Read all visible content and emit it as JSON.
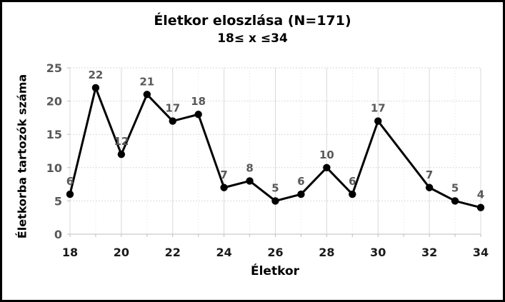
{
  "chart_data": {
    "type": "line",
    "title": "Életkor eloszlása (N=171)",
    "subtitle": "18≤ x ≤34",
    "xlabel": "Életkor",
    "ylabel": "Életkorba tartozók száma",
    "x": [
      18,
      19,
      20,
      21,
      22,
      23,
      24,
      25,
      26,
      27,
      28,
      29,
      30,
      32,
      33,
      34
    ],
    "values": [
      6,
      22,
      12,
      21,
      17,
      18,
      7,
      8,
      5,
      6,
      10,
      6,
      17,
      7,
      5,
      4
    ],
    "data_labels_shown": true,
    "xlim": [
      18,
      34
    ],
    "ylim": [
      0,
      25
    ],
    "x_major_ticks": [
      18,
      20,
      22,
      24,
      26,
      28,
      30,
      32,
      34
    ],
    "x_minor_tick_step": 1,
    "y_ticks": [
      0,
      5,
      10,
      15,
      20,
      25
    ],
    "grid": {
      "horizontal": "dashed",
      "vertical_major": "solid",
      "vertical_minor": "dotted"
    },
    "legend": "none",
    "colors": {
      "line": "#000000",
      "marker": "#000000",
      "data_label": "#595959",
      "y_tick_label": "#595959",
      "x_tick_label": "#1a1a1a",
      "gridline": "#d9d9d9",
      "minor_gridline": "#e4e4e4",
      "axis": "#bfbfbf",
      "title": "#000000",
      "frame_border": "#000000",
      "background": "#ffffff"
    }
  }
}
